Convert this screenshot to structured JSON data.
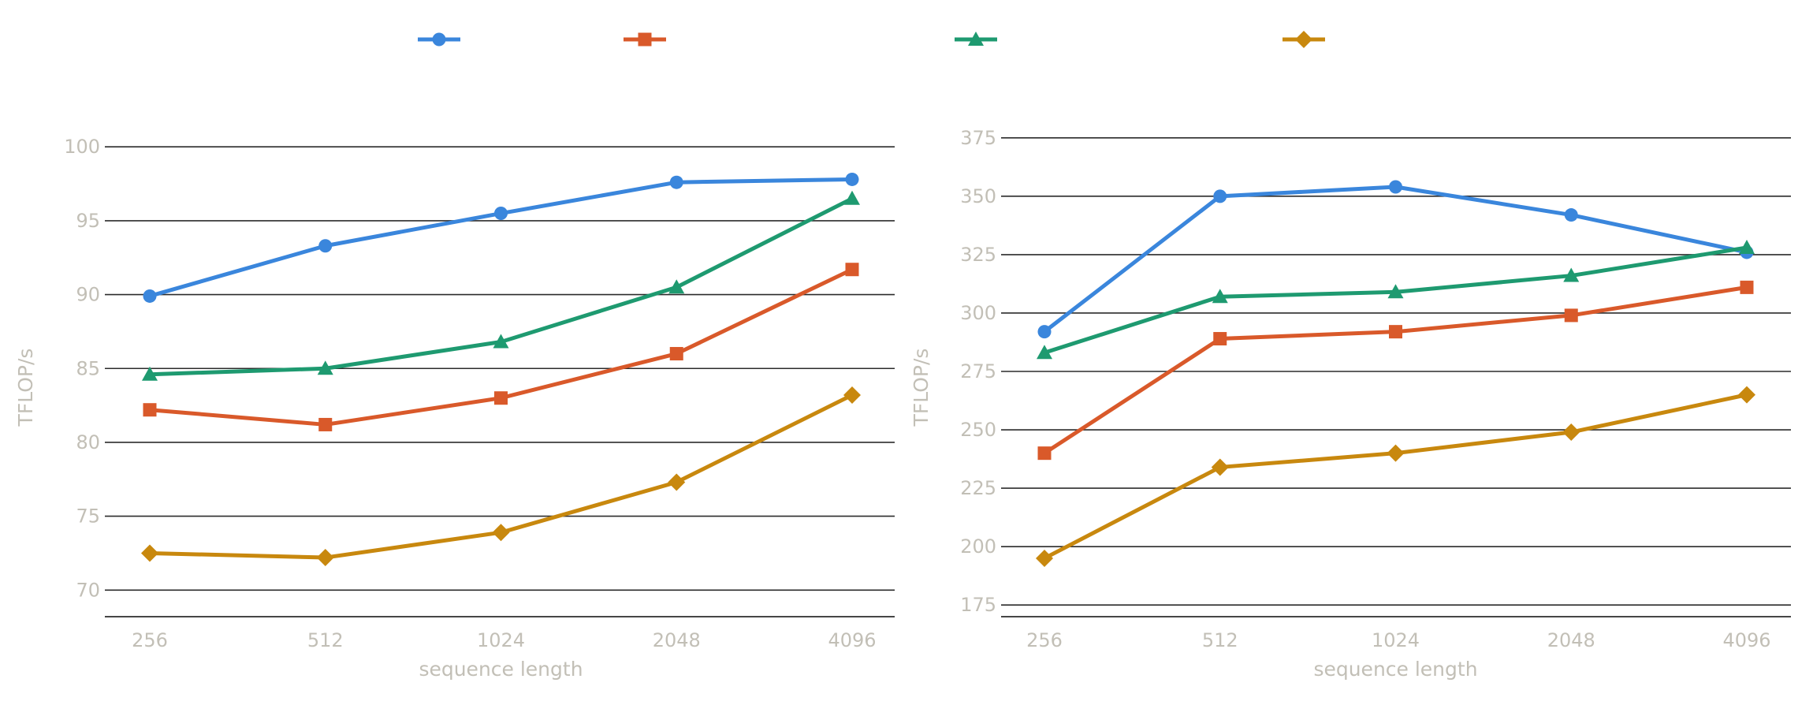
{
  "legend": {
    "placement": "top-center",
    "entries": [
      {
        "name": "",
        "color": "#3a86dc",
        "marker": "circle"
      },
      {
        "name": "",
        "color": "#d9592a",
        "marker": "square"
      },
      {
        "name": "",
        "color": "#1e9a70",
        "marker": "triangle"
      },
      {
        "name": "",
        "color": "#c8880e",
        "marker": "diamond"
      }
    ]
  },
  "chart_data": [
    {
      "type": "line",
      "title": "",
      "xlabel": "sequence length",
      "ylabel": "TFLOP/s",
      "categories": [
        "256",
        "512",
        "1024",
        "2048",
        "4096"
      ],
      "ylim": [
        68.2,
        101.4
      ],
      "yticks": [
        70,
        75,
        80,
        85,
        90,
        95,
        100
      ],
      "grid": "horizontal",
      "series": [
        {
          "name": "",
          "color": "#3a86dc",
          "marker": "circle",
          "values": [
            89.9,
            93.3,
            95.5,
            97.6,
            97.8
          ]
        },
        {
          "name": "",
          "color": "#d9592a",
          "marker": "square",
          "values": [
            82.2,
            81.2,
            83.0,
            86.0,
            91.7
          ]
        },
        {
          "name": "",
          "color": "#1e9a70",
          "marker": "triangle",
          "values": [
            84.6,
            85.0,
            86.8,
            90.5,
            96.5
          ]
        },
        {
          "name": "",
          "color": "#c8880e",
          "marker": "diamond",
          "values": [
            72.5,
            72.2,
            73.9,
            77.3,
            83.2
          ]
        }
      ]
    },
    {
      "type": "line",
      "title": "",
      "xlabel": "sequence length",
      "ylabel": "TFLOP/s",
      "categories": [
        "256",
        "512",
        "1024",
        "2048",
        "4096"
      ],
      "ylim": [
        170,
        380
      ],
      "yticks": [
        175,
        200,
        225,
        250,
        275,
        300,
        325,
        350,
        375
      ],
      "grid": "horizontal",
      "series": [
        {
          "name": "",
          "color": "#3a86dc",
          "marker": "circle",
          "values": [
            292,
            350,
            354,
            342,
            326
          ]
        },
        {
          "name": "",
          "color": "#d9592a",
          "marker": "square",
          "values": [
            240,
            289,
            292,
            299,
            311
          ]
        },
        {
          "name": "",
          "color": "#1e9a70",
          "marker": "triangle",
          "values": [
            283,
            307,
            309,
            316,
            328
          ]
        },
        {
          "name": "",
          "color": "#c8880e",
          "marker": "diamond",
          "values": [
            195,
            234,
            240,
            249,
            265
          ]
        }
      ]
    }
  ]
}
